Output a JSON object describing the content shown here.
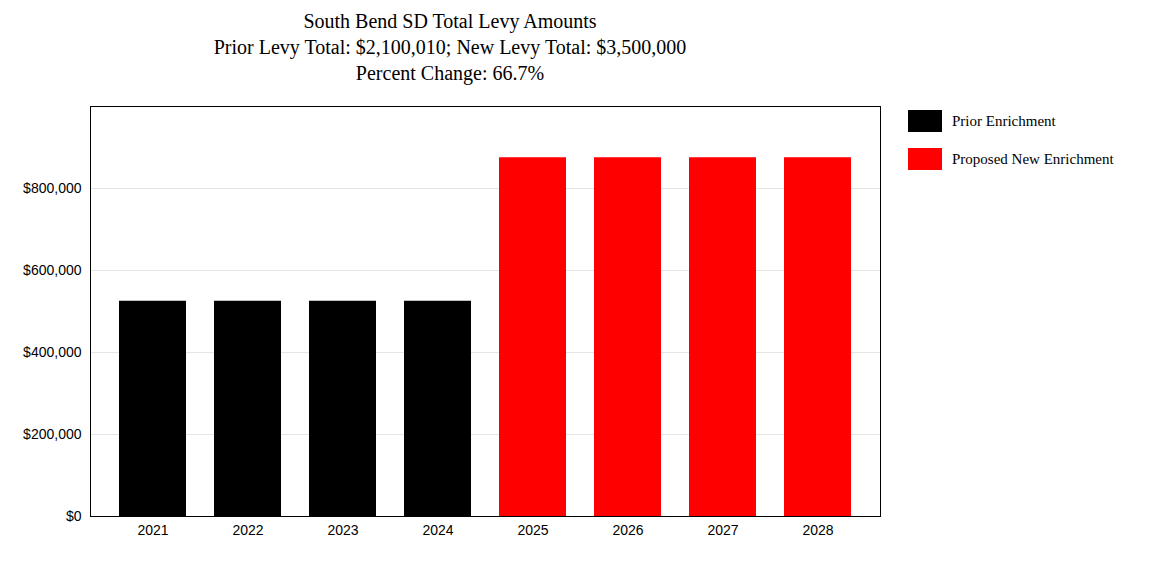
{
  "chart_data": {
    "type": "bar",
    "title": "South Bend SD Total Levy Amounts\nPrior Levy Total:  $2,100,010; New Levy Total: $3,500,000\nPercent Change: 66.7%",
    "categories": [
      "2021",
      "2022",
      "2023",
      "2024",
      "2025",
      "2026",
      "2027",
      "2028"
    ],
    "series": [
      {
        "name": "Prior Enrichment",
        "color": "#000000",
        "values": [
          525002.5,
          525002.5,
          525002.5,
          525002.5,
          null,
          null,
          null,
          null
        ]
      },
      {
        "name": "Proposed New Enrichment",
        "color": "#ff0000",
        "values": [
          null,
          null,
          null,
          null,
          875000,
          875000,
          875000,
          875000
        ]
      }
    ],
    "ylim": [
      0,
      1000000
    ],
    "yticks": [
      {
        "value": 0,
        "label": "$0"
      },
      {
        "value": 200000,
        "label": "$200,000"
      },
      {
        "value": 400000,
        "label": "$400,000"
      },
      {
        "value": 600000,
        "label": "$600,000"
      },
      {
        "value": 800000,
        "label": "$800,000"
      }
    ],
    "grid": true,
    "legend": "right"
  }
}
